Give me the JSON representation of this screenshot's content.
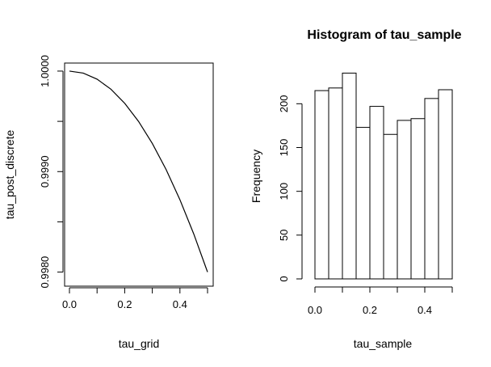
{
  "chart_data": [
    {
      "type": "line",
      "title": "",
      "xlabel": "tau_grid",
      "ylabel": "tau_post_discrete",
      "xlim": [
        0,
        0.5
      ],
      "ylim": [
        0.99786,
        1.00008
      ],
      "x_ticks": [
        0.0,
        0.1,
        0.2,
        0.3,
        0.4,
        0.5
      ],
      "x_tick_labels": [
        "0.0",
        "0.2",
        "0.4"
      ],
      "y_ticks": [
        0.998,
        0.9985,
        0.999,
        0.9995,
        1.0
      ],
      "y_tick_labels": [
        "0.9980",
        "0.9990",
        "1.0000"
      ],
      "x": [
        0.0,
        0.05,
        0.1,
        0.15,
        0.2,
        0.25,
        0.3,
        0.35,
        0.4,
        0.45,
        0.5
      ],
      "y": [
        1.0,
        0.99998,
        0.99992,
        0.99982,
        0.99968,
        0.9995,
        0.99928,
        0.99902,
        0.99872,
        0.99838,
        0.998
      ],
      "grid": false,
      "box": true
    },
    {
      "type": "bar",
      "title": "Histogram of tau_sample",
      "xlabel": "tau_sample",
      "ylabel": "Frequency",
      "bin_edges": [
        0.0,
        0.05,
        0.1,
        0.15,
        0.2,
        0.25,
        0.3,
        0.35,
        0.4,
        0.45,
        0.5
      ],
      "values": [
        215,
        218,
        235,
        173,
        197,
        165,
        181,
        183,
        206,
        216
      ],
      "xlim": [
        0,
        0.5
      ],
      "ylim": [
        0,
        240
      ],
      "x_ticks": [
        0.0,
        0.1,
        0.2,
        0.3,
        0.4,
        0.5
      ],
      "x_tick_labels": [
        "0.0",
        "0.2",
        "0.4"
      ],
      "y_ticks": [
        0,
        50,
        100,
        150,
        200
      ],
      "y_tick_labels": [
        "0",
        "50",
        "100",
        "150",
        "200"
      ],
      "grid": false,
      "box": false
    }
  ]
}
